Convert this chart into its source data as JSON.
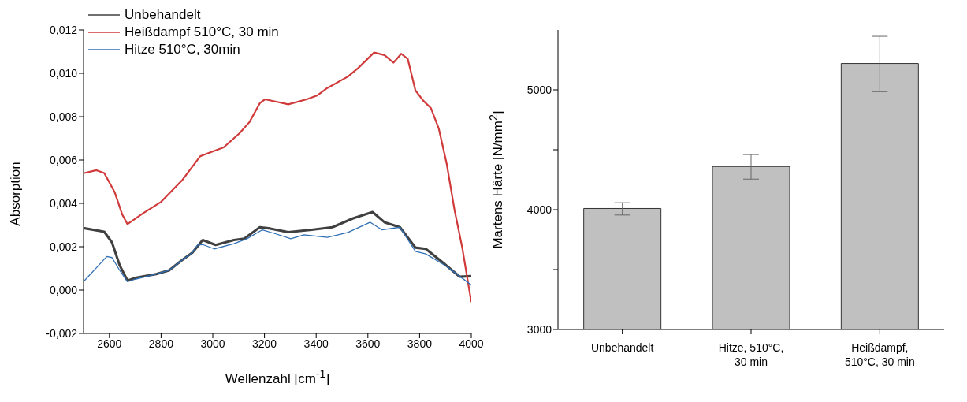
{
  "chart_data": [
    {
      "type": "line",
      "xlabel": "Wellenzahl [cm$^{-1}$]",
      "ylabel": "Absorption",
      "xlim": [
        2500,
        4000
      ],
      "xticks": [
        2600,
        2800,
        3000,
        3200,
        3400,
        3600,
        3800,
        4000
      ],
      "ylim": [
        -0.002,
        0.012
      ],
      "yticks": [
        {
          "value": -0.002,
          "label": "-0,002"
        },
        {
          "value": 0,
          "label": "0,000"
        },
        {
          "value": 0.002,
          "label": "0,002"
        },
        {
          "value": 0.004,
          "label": "0,004"
        },
        {
          "value": 0.006,
          "label": "0,006"
        },
        {
          "value": 0.008,
          "label": "0,008"
        },
        {
          "value": 0.01,
          "label": "0,010"
        },
        {
          "value": 0.012,
          "label": "0,012"
        }
      ],
      "legend": "top left",
      "series": [
        {
          "name": "Unbehandelt",
          "color": "#404040",
          "x": [
            2500,
            2580,
            2610,
            2640,
            2670,
            2700,
            2781,
            2831,
            2881,
            2921,
            2961,
            3011,
            3082,
            3122,
            3182,
            3222,
            3292,
            3383,
            3463,
            3543,
            3618,
            3664,
            3724,
            3784,
            3824,
            3885,
            3955,
            4000
          ],
          "values": [
            0.00286,
            0.00269,
            0.0022,
            0.00114,
            0.00044,
            0.00056,
            0.00074,
            0.00091,
            0.00138,
            0.00173,
            0.00231,
            0.00208,
            0.00231,
            0.00237,
            0.0029,
            0.00284,
            0.00267,
            0.00278,
            0.0029,
            0.00331,
            0.0036,
            0.00313,
            0.0029,
            0.00196,
            0.0019,
            0.00132,
            0.00062,
            0.00064
          ]
        },
        {
          "name": "Heißdampf 510°C, 30 min",
          "color": "#d03a3a",
          "x": [
            2500,
            2550,
            2580,
            2620,
            2650,
            2670,
            2730,
            2800,
            2881,
            2951,
            3001,
            3042,
            3102,
            3142,
            3182,
            3202,
            3242,
            3292,
            3363,
            3403,
            3443,
            3523,
            3564,
            3624,
            3664,
            3699,
            3729,
            3754,
            3784,
            3814,
            3844,
            3874,
            3905,
            3935,
            3965,
            4000
          ],
          "values": [
            0.00539,
            0.00553,
            0.0054,
            0.00453,
            0.00348,
            0.00304,
            0.00354,
            0.00407,
            0.00506,
            0.00617,
            0.0064,
            0.00658,
            0.00722,
            0.00775,
            0.00862,
            0.0088,
            0.0087,
            0.00857,
            0.0088,
            0.00897,
            0.00932,
            0.00985,
            0.01026,
            0.01096,
            0.01084,
            0.01049,
            0.0109,
            0.01067,
            0.00921,
            0.00874,
            0.00839,
            0.00746,
            0.00582,
            0.00371,
            0.00196,
            -0.00055
          ]
        },
        {
          "name": "Hitze 510°C, 30min",
          "color": "#2f6fb5",
          "x": [
            2500,
            2550,
            2590,
            2610,
            2640,
            2670,
            2700,
            2781,
            2831,
            2881,
            2921,
            2941,
            2961,
            3006,
            3082,
            3132,
            3192,
            3242,
            3302,
            3353,
            3443,
            3523,
            3609,
            3654,
            3724,
            3784,
            3824,
            3905,
            4000
          ],
          "values": [
            0.00039,
            0.00103,
            0.00155,
            0.0015,
            0.00091,
            0.00039,
            0.0005,
            0.00074,
            0.00091,
            0.00138,
            0.00173,
            0.00208,
            0.0021,
            0.0019,
            0.00214,
            0.00237,
            0.00278,
            0.0026,
            0.00237,
            0.00255,
            0.00243,
            0.00266,
            0.00313,
            0.00278,
            0.0029,
            0.00179,
            0.00167,
            0.00109,
            0.00023
          ]
        }
      ]
    },
    {
      "type": "bar",
      "ylabel": "Martens Härte [N/mm$^{2}$]",
      "categories": [
        "Unbehandelt",
        "Hitze, 510°C, 30 min",
        "Heißdampf, 510°C, 30 min"
      ],
      "values": [
        4010,
        4360,
        5220
      ],
      "errors": [
        [
          3955,
          4058
        ],
        [
          4255,
          4460
        ],
        [
          4985,
          5447
        ]
      ],
      "color": "#c0c0c0",
      "ylim": [
        3000,
        5500
      ],
      "yticks": [
        3000,
        {
          "value": 3500,
          "label": null
        },
        4000,
        {
          "value": 4500,
          "label": null
        },
        5000
      ]
    }
  ]
}
